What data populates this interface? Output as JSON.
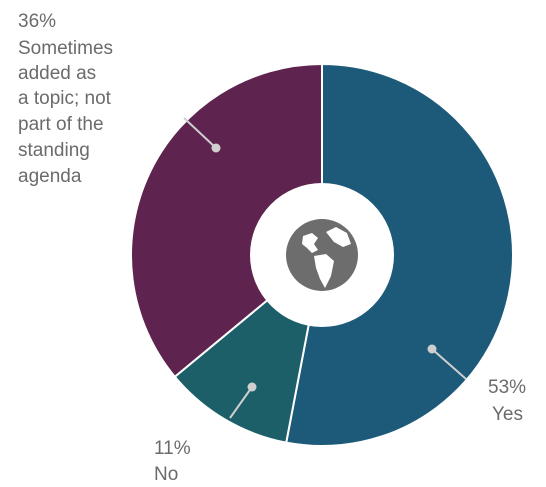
{
  "chart_data": {
    "type": "pie",
    "variant": "donut",
    "center_icon": "globe-icon",
    "slices": [
      {
        "label": "Yes",
        "value": 53,
        "value_text": "53%",
        "color": "#1d5a7a"
      },
      {
        "label": "No",
        "value": 11,
        "value_text": "11%",
        "color": "#1c5f68"
      },
      {
        "label": "Sometimes added as a topic; not part of the standing agenda",
        "value": 36,
        "value_text": "36%",
        "color": "#5e234e"
      }
    ],
    "label_lines": {
      "yes": [
        "53%",
        "Yes"
      ],
      "no": [
        "11%",
        "No"
      ],
      "sometimes": [
        "36%",
        "Sometimes",
        "added as",
        "a topic; not",
        "part of the",
        "standing",
        "agenda"
      ]
    },
    "colors": {
      "leader": "#cfcfcf",
      "icon": "#6d6d6d",
      "label_text": "#6b6b6b"
    }
  }
}
